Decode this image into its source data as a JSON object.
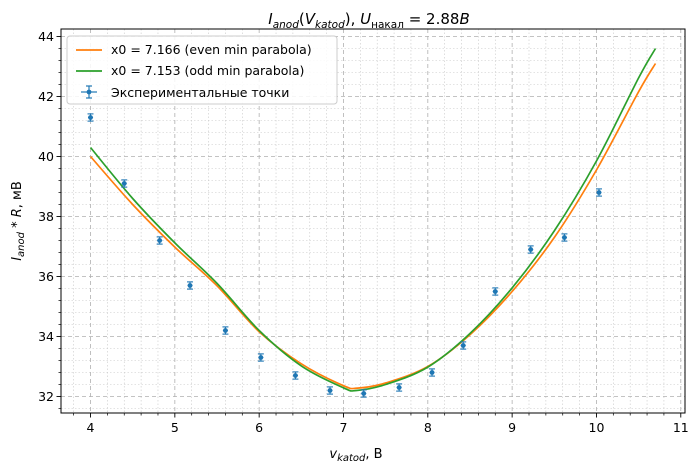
{
  "chart_data": {
    "type": "scatter",
    "title": "I_anod(V_katod), U_накал = 2.88B",
    "xlabel": "v_katod, В",
    "ylabel": "I_anod * R, мВ",
    "xlim": [
      3.65,
      11.05
    ],
    "ylim": [
      31.45,
      44.25
    ],
    "x_ticks": [
      4,
      5,
      6,
      7,
      8,
      9,
      10,
      11
    ],
    "y_ticks": [
      32,
      34,
      36,
      38,
      40,
      42,
      44
    ],
    "x_minor_step": 0.2,
    "y_minor_step": 0.4,
    "grid": true,
    "legend_position": "top-left",
    "colors": {
      "even": "#ff7f0e",
      "odd": "#2ca02c",
      "points": "#1f77b4"
    },
    "series": [
      {
        "name": "x0 = 7.166 (even min parabola)",
        "kind": "line",
        "color": "#ff7f0e",
        "x0": 7.166,
        "x_range": [
          4.0,
          10.7
        ],
        "x": [
          4.0,
          4.5,
          5.0,
          5.5,
          6.0,
          6.5,
          7.0,
          7.166,
          7.5,
          8.0,
          8.5,
          9.0,
          9.5,
          10.0,
          10.5,
          10.7
        ],
        "y": [
          40.0,
          38.4,
          36.98,
          35.69,
          34.16,
          33.09,
          32.36,
          32.28,
          32.45,
          33.0,
          34.06,
          35.5,
          37.3,
          39.55,
          42.16,
          43.1
        ]
      },
      {
        "name": "x0 = 7.153 (odd min parabola)",
        "kind": "line",
        "color": "#2ca02c",
        "x0": 7.153,
        "x_range": [
          4.0,
          10.7
        ],
        "x": [
          4.0,
          4.5,
          5.0,
          5.5,
          6.0,
          6.5,
          7.0,
          7.153,
          7.5,
          8.0,
          8.5,
          9.0,
          9.5,
          10.0,
          10.5,
          10.7
        ],
        "y": [
          40.3,
          38.6,
          37.12,
          35.77,
          34.2,
          33.02,
          32.29,
          32.2,
          32.4,
          32.98,
          34.1,
          35.62,
          37.52,
          39.85,
          42.62,
          43.6
        ]
      },
      {
        "name": "Экспериментальные точки",
        "kind": "errorbar",
        "color": "#1f77b4",
        "x": [
          4.0,
          4.4,
          4.82,
          5.18,
          5.6,
          6.02,
          6.43,
          6.84,
          7.24,
          7.66,
          8.05,
          8.42,
          8.8,
          9.22,
          9.62,
          10.03
        ],
        "y": [
          41.3,
          39.1,
          37.2,
          35.7,
          34.2,
          33.3,
          32.7,
          32.2,
          32.1,
          32.3,
          32.8,
          33.7,
          35.5,
          36.9,
          37.3,
          38.8
        ],
        "yerr": 0.12,
        "xerr": 0.03
      }
    ]
  }
}
